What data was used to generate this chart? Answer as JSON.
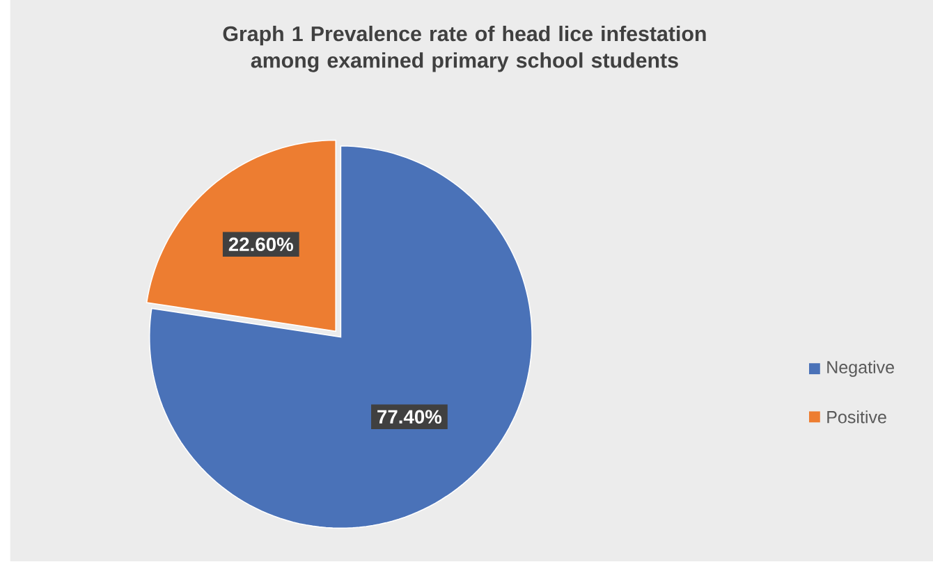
{
  "chart_data": {
    "type": "pie",
    "title": "Graph 1 Prevalence rate of  head lice infestation among examined primary school students",
    "categories": [
      "Negative",
      "Positive"
    ],
    "values": [
      77.4,
      22.6
    ],
    "colors": [
      "#4a72b8",
      "#ed7d31"
    ],
    "value_labels": [
      "77.40%",
      "22.60%"
    ],
    "legend": "right"
  }
}
